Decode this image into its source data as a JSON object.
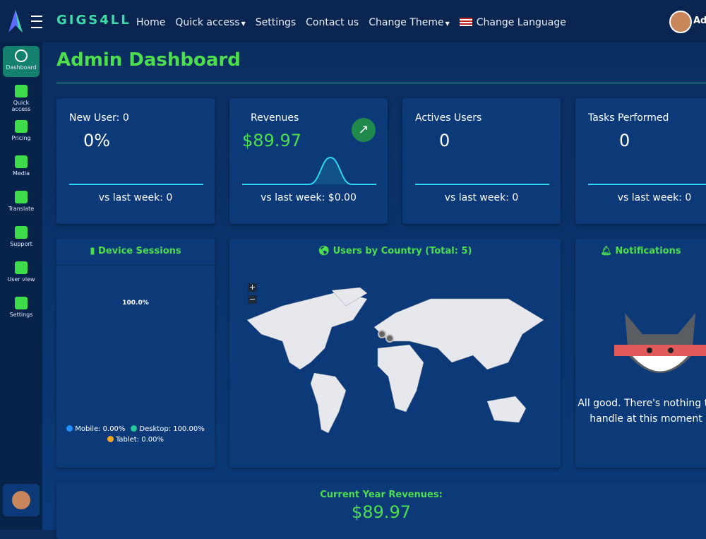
{
  "nav": {
    "brand": "GIGS4LL",
    "links": [
      "Home",
      "Quick access",
      "Settings",
      "Contact us",
      "Change Theme",
      "Change Language"
    ],
    "user": "Admin"
  },
  "sidebar": [
    "Dashboard",
    "Quick access",
    "Pricing",
    "Media",
    "Translate",
    "Support",
    "User view",
    "Settings"
  ],
  "header": {
    "title": "Admin Dashboard"
  },
  "cards": [
    {
      "title": "New User: 0",
      "value": "0%",
      "footer": "vs last week: 0"
    },
    {
      "title": "Revenues",
      "value": "$89.97",
      "footer": "vs last week: $0.00"
    },
    {
      "title": "Actives Users",
      "value": "0",
      "footer": "vs last week: 0"
    },
    {
      "title": "Tasks Performed",
      "value": "0",
      "footer": "vs last week: 0"
    }
  ],
  "device_sessions": {
    "title": "Device Sessions",
    "chart_data": {
      "type": "pie",
      "categories": [
        "Mobile",
        "Desktop",
        "Tablet"
      ],
      "values": [
        0,
        100,
        0
      ],
      "value_labels": [
        null,
        "100.0%",
        null
      ],
      "colors": [
        "#1e90ff",
        "#20c997",
        "#f5a623"
      ],
      "legend": [
        "Mobile: 0.00%",
        "Desktop: 100.00%",
        "Tablet: 0.00%"
      ]
    }
  },
  "map": {
    "title": "Users by Country (Total: 5)",
    "zoom_in": "+",
    "zoom_out": "−"
  },
  "notifications": {
    "title": "Notifications",
    "message": "All good. There's nothing to handle at this moment"
  },
  "revenue": {
    "title": "Current Year Revenues:",
    "value": "$89.97"
  }
}
